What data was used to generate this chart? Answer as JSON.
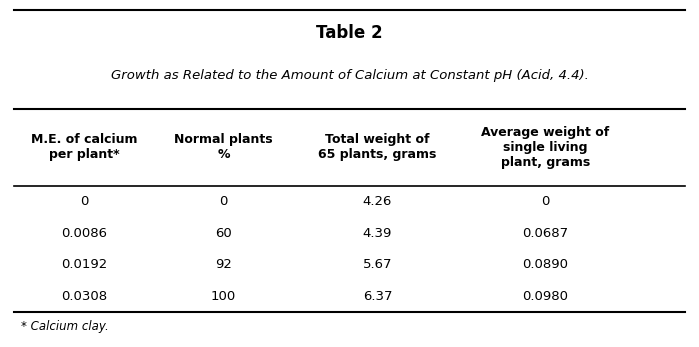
{
  "title": "Table 2",
  "subtitle": "Growth as Related to the Amount of Calcium at Constant pH (Acid, 4.4).",
  "col_headers": [
    "M.E. of calcium\nper plant*",
    "Normal plants\n%",
    "Total weight of\n65 plants, grams",
    "Average weight of\nsingle living\nplant, grams"
  ],
  "rows": [
    [
      "0",
      "0",
      "4.26",
      "0"
    ],
    [
      "0.0086",
      "60",
      "4.39",
      "0.0687"
    ],
    [
      "0.0192",
      "92",
      "5.67",
      "0.0890"
    ],
    [
      "0.0308",
      "100",
      "6.37",
      "0.0980"
    ]
  ],
  "footnote": "* Calcium clay.",
  "col_aligns": [
    "center",
    "center",
    "center",
    "center"
  ],
  "bg_color": "#ffffff",
  "text_color": "#000000",
  "border_color": "#000000"
}
